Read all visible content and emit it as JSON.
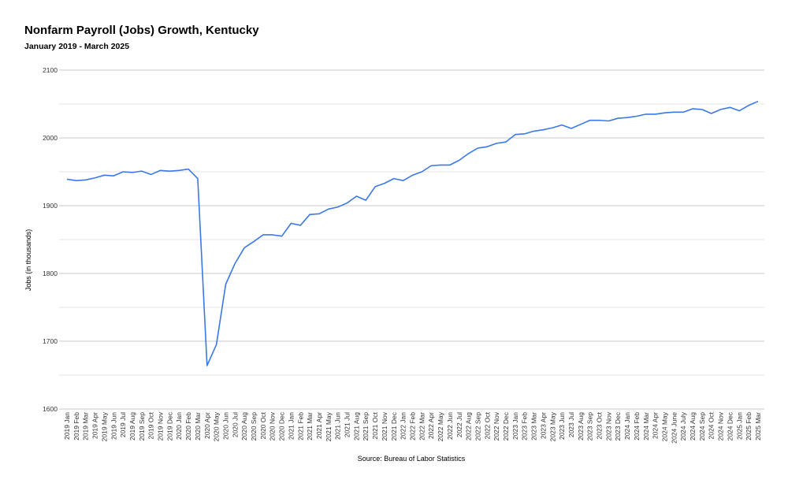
{
  "chart_data": {
    "type": "line",
    "title": "Nonfarm Payroll (Jobs) Growth, Kentucky",
    "subtitle": "January 2019 - March 2025",
    "ylabel": "Jobs (in thousands)",
    "source": "Source: Bureau of Labor Statistics",
    "ylim": [
      1600,
      2100
    ],
    "yticks": [
      1600,
      1700,
      1800,
      1900,
      2000,
      2100
    ],
    "grid": true,
    "line_color": "#3b78e7",
    "categories": [
      "2019 Jan",
      "2019 Feb",
      "2019 Mar",
      "2019 Apr",
      "2019 May",
      "2019 Jun",
      "2019 Jul",
      "2019 Aug",
      "2019 Sep",
      "2019 Oct",
      "2019 Nov",
      "2019 Dec",
      "2020 Jan",
      "2020 Feb",
      "2020 Mar",
      "2020 Apr",
      "2020 May",
      "2020 Jun",
      "2020 Jul",
      "2020 Aug",
      "2020 Sep",
      "2020 Oct",
      "2020 Nov",
      "2020 Dec",
      "2021 Jan",
      "2021 Feb",
      "2021 Mar",
      "2021 Apr",
      "2021 May",
      "2021 Jun",
      "2021 Jul",
      "2021 Aug",
      "2021 Sep",
      "2021 Oct",
      "2021 Nov",
      "2021 Dec",
      "2022 Jan",
      "2022 Feb",
      "2022 Mar",
      "2022 Apr",
      "2022 May",
      "2022 Jun",
      "2022 Jul",
      "2022 Aug",
      "2022 Sep",
      "2022 Oct",
      "2022 Nov",
      "2022 Dec",
      "2023 Jan",
      "2023 Feb",
      "2023 Mar",
      "2023 Apr",
      "2023 May",
      "2023 Jun",
      "2023 Jul",
      "2023 Aug",
      "2023 Sep",
      "2023 Oct",
      "2023 Nov",
      "2023 Dec",
      "2024 Jan",
      "2024 Feb",
      "2024 Mar",
      "2024 Apr",
      "2024 May",
      "2024 June",
      "2024 July",
      "2024 Aug",
      "2024 Sep",
      "2024 Oct",
      "2024 Nov",
      "2024 Dec",
      "2025 Jan",
      "2025 Feb",
      "2025 Mar"
    ],
    "values": [
      1939,
      1937,
      1938,
      1941,
      1945,
      1944,
      1950,
      1949,
      1951,
      1946,
      1952,
      1951,
      1952,
      1954,
      1940,
      1664,
      1695,
      1784,
      1815,
      1838,
      1847,
      1857,
      1857,
      1855,
      1874,
      1871,
      1887,
      1888,
      1895,
      1898,
      1904,
      1914,
      1908,
      1928,
      1933,
      1940,
      1937,
      1945,
      1950,
      1959,
      1960,
      1960,
      1967,
      1977,
      1985,
      1987,
      1992,
      1994,
      2005,
      2006,
      2010,
      2012,
      2015,
      2019,
      2014,
      2020,
      2026,
      2026,
      2025,
      2029,
      2030,
      2032,
      2035,
      2035,
      2037,
      2038,
      2038,
      2043,
      2042,
      2036,
      2042,
      2045,
      2040,
      2048,
      2054
    ]
  }
}
